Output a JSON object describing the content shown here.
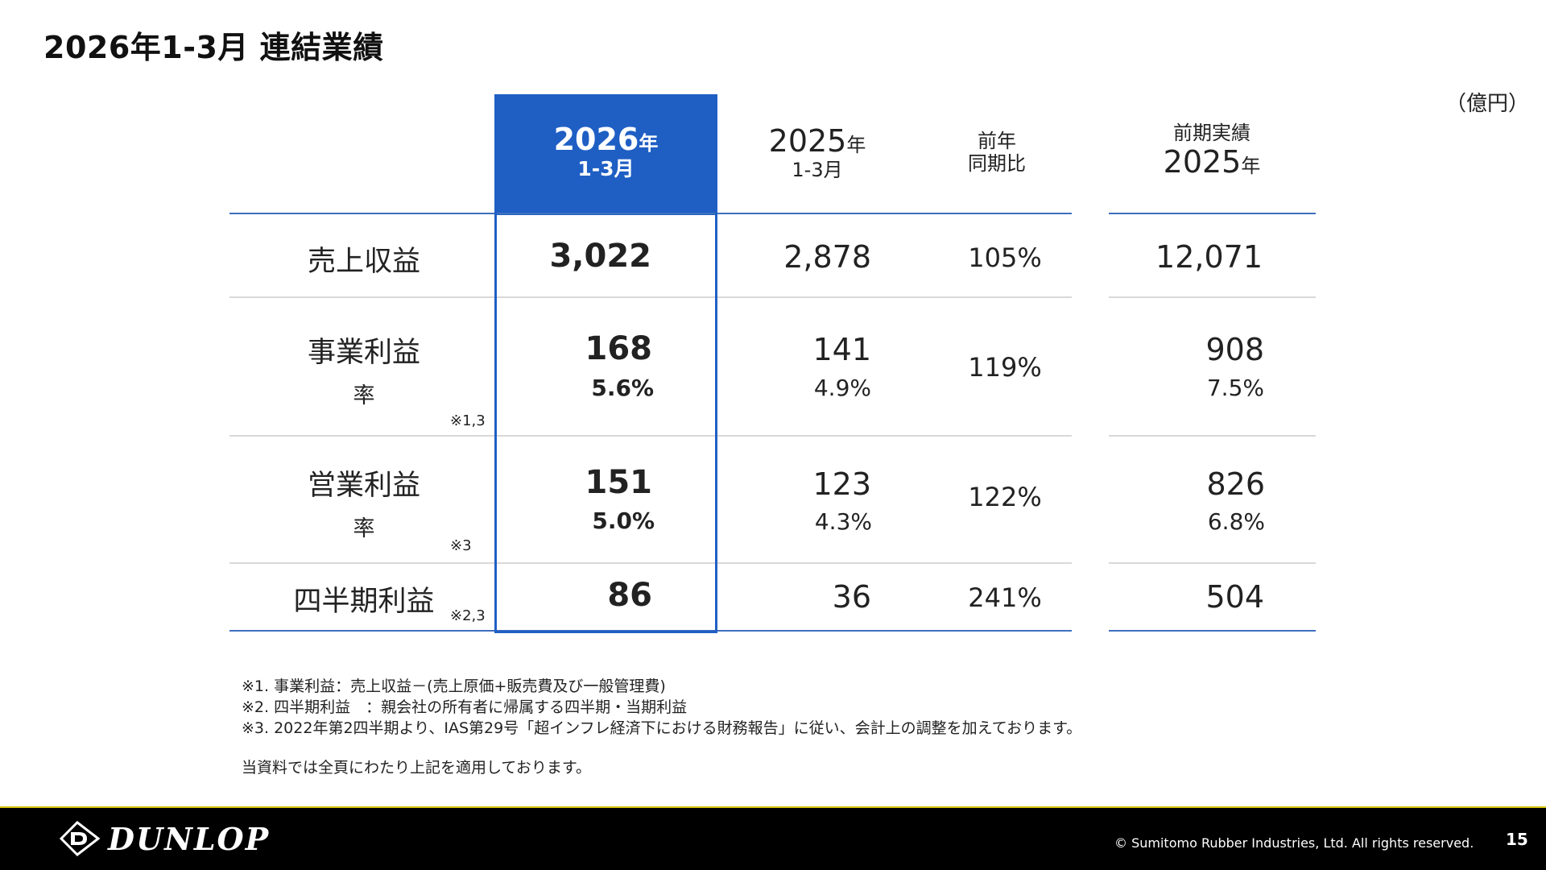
{
  "title": "2026年1-3月 連結業績",
  "unit": "（億円）",
  "header": {
    "current": {
      "year": "2026",
      "year_suffix": "年",
      "quarter": "1-3月"
    },
    "prior": {
      "year": "2025",
      "year_suffix": "年",
      "quarter": "1-3月"
    },
    "yoy": {
      "line1": "前年",
      "line2": "同期比"
    },
    "fullyear": {
      "line1": "前期実績",
      "year": "2025",
      "year_suffix": "年"
    }
  },
  "rows": {
    "sales": {
      "label": "売上収益",
      "current": "3,022",
      "prior": "2,878",
      "yoy": "105%",
      "fullyear": "12,071"
    },
    "business": {
      "label": "事業利益",
      "sub_label": "率",
      "note": "※1,3",
      "current": "168",
      "current_rate": "5.6%",
      "prior": "141",
      "prior_rate": "4.9%",
      "yoy": "119%",
      "fullyear": "908",
      "fullyear_rate": "7.5%"
    },
    "operating": {
      "label": "営業利益",
      "sub_label": "率",
      "note": "※3",
      "current": "151",
      "current_rate": "5.0%",
      "prior": "123",
      "prior_rate": "4.3%",
      "yoy": "122%",
      "fullyear": "826",
      "fullyear_rate": "6.8%"
    },
    "quarter": {
      "label": "四半期利益",
      "note": "※2,3",
      "current": "86",
      "prior": "36",
      "yoy": "241%",
      "fullyear": "504"
    }
  },
  "footnotes": [
    "※1. 事業利益：売上収益－(売上原価+販売費及び一般管理費)",
    "※2. 四半期利益　：親会社の所有者に帰属する四半期・当期利益",
    "※3. 2022年第2四半期より、IAS第29号「超インフレ経済下における財務報告」に従い、会計上の調整を加えております。",
    "当資料では全頁にわたり上記を適用しております。"
  ],
  "footer": {
    "brand": "DUNLOP",
    "copyright": "© Sumitomo Rubber Industries, Ltd. All rights reserved.",
    "page": "15"
  },
  "colors": {
    "accent": "#1f5fc4",
    "rule": "#3d6fbe",
    "footer_bg": "#000000",
    "footer_line": "#d6c200"
  }
}
